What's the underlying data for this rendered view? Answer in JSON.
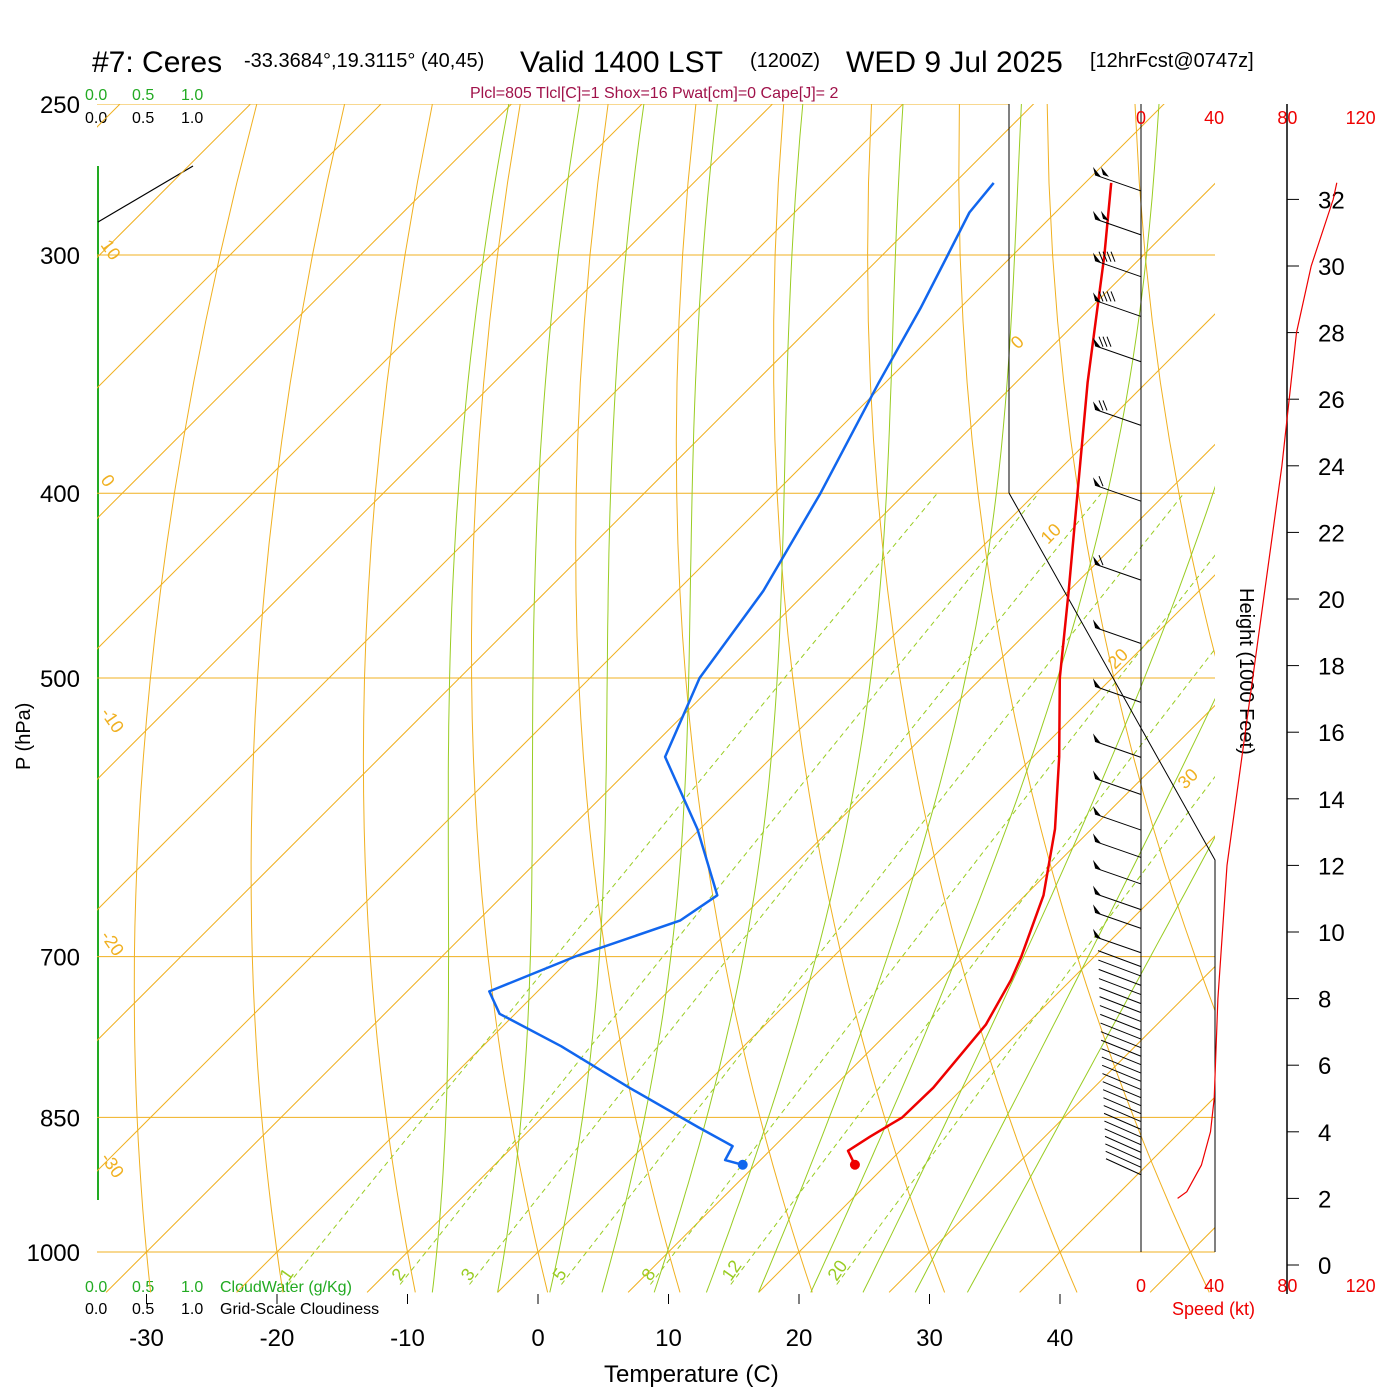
{
  "header": {
    "title": "#7: Ceres",
    "coords": "-33.3684°,19.3115° (40,45)",
    "valid": "Valid 1400 LST",
    "zulu": "(1200Z)",
    "date": "WED 9 Jul 2025",
    "forecast": "[12hrFcst@0747z]"
  },
  "indices": "Plcl=805 Tlcl[C]=1 Shox=16 Pwat[cm]=0 Cape[J]= 2",
  "scales": {
    "cloudwater_ticks": [
      "0.0",
      "0.5",
      "1.0"
    ],
    "cloudiness_ticks": [
      "0.0",
      "0.5",
      "1.0"
    ],
    "cloudwater_label": "CloudWater (g/Kg)",
    "cloudiness_label": "Grid-Scale Cloudiness"
  },
  "axes": {
    "xlabel": "Temperature (C)",
    "ylabel": "P (hPa)",
    "height_label": "Height (1000 Feet)",
    "speed_label": "Speed (kt)"
  },
  "colors": {
    "temperature": "#ee0000",
    "dewpoint": "#1166ee",
    "isotherm": "#f0b020",
    "dry_adiabat": "#f0b020",
    "moist_adiabat": "#99cc22",
    "mixing_ratio": "#99cc22",
    "cloud_scale": "#22aa22",
    "speed": "#ee0000"
  },
  "chart_data": {
    "type": "line",
    "subtype": "skew-t log-p sounding",
    "x_ticks": [
      -30,
      -20,
      -10,
      0,
      10,
      20,
      30,
      40
    ],
    "pressure_ticks": [
      250,
      300,
      400,
      500,
      700,
      850,
      1000
    ],
    "height_ticks": [
      0,
      2,
      4,
      6,
      8,
      10,
      12,
      14,
      16,
      18,
      20,
      22,
      24,
      26,
      28,
      30,
      32
    ],
    "speed_ticks": [
      0,
      40,
      80,
      120
    ],
    "isotherm_labels": [
      10,
      0,
      -10,
      -20,
      -30,
      0,
      10,
      20,
      30
    ],
    "mixing_ratio_labels": [
      1,
      2,
      3,
      5,
      8,
      12,
      20
    ],
    "series": [
      {
        "name": "temperature",
        "points": [
          {
            "p": 900,
            "t": 17.6
          },
          {
            "p": 885,
            "t": 16.0
          },
          {
            "p": 870,
            "t": 16.6
          },
          {
            "p": 850,
            "t": 17.6
          },
          {
            "p": 820,
            "t": 17.7
          },
          {
            "p": 760,
            "t": 16.9
          },
          {
            "p": 720,
            "t": 15.4
          },
          {
            "p": 700,
            "t": 14.4
          },
          {
            "p": 650,
            "t": 11.4
          },
          {
            "p": 600,
            "t": 7.2
          },
          {
            "p": 550,
            "t": 2.0
          },
          {
            "p": 500,
            "t": -4.0
          },
          {
            "p": 450,
            "t": -10.0
          },
          {
            "p": 400,
            "t": -16.8
          },
          {
            "p": 350,
            "t": -24.5
          },
          {
            "p": 300,
            "t": -33.0
          },
          {
            "p": 275,
            "t": -38.0
          }
        ]
      },
      {
        "name": "dewpoint",
        "points": [
          {
            "p": 900,
            "t": 9.0
          },
          {
            "p": 895,
            "t": 7.3
          },
          {
            "p": 880,
            "t": 6.8
          },
          {
            "p": 860,
            "t": 2.7
          },
          {
            "p": 820,
            "t": -5.6
          },
          {
            "p": 780,
            "t": -14.0
          },
          {
            "p": 750,
            "t": -21.2
          },
          {
            "p": 730,
            "t": -23.7
          },
          {
            "p": 700,
            "t": -19.8
          },
          {
            "p": 670,
            "t": -14.5
          },
          {
            "p": 650,
            "t": -13.6
          },
          {
            "p": 600,
            "t": -20.2
          },
          {
            "p": 550,
            "t": -28.2
          },
          {
            "p": 500,
            "t": -31.6
          },
          {
            "p": 450,
            "t": -33.4
          },
          {
            "p": 400,
            "t": -36.5
          },
          {
            "p": 350,
            "t": -40.5
          },
          {
            "p": 320,
            "t": -43.0
          },
          {
            "p": 300,
            "t": -45.0
          },
          {
            "p": 285,
            "t": -46.6
          },
          {
            "p": 275,
            "t": -47.0
          }
        ]
      },
      {
        "name": "speed",
        "points": [
          {
            "h": 2.0,
            "kt": 20
          },
          {
            "h": 2.2,
            "kt": 25
          },
          {
            "h": 3.0,
            "kt": 33
          },
          {
            "h": 4.0,
            "kt": 38
          },
          {
            "h": 5.0,
            "kt": 40
          },
          {
            "h": 8.0,
            "kt": 42
          },
          {
            "h": 12.0,
            "kt": 47
          },
          {
            "h": 16.0,
            "kt": 57
          },
          {
            "h": 20.0,
            "kt": 67
          },
          {
            "h": 24.0,
            "kt": 77
          },
          {
            "h": 28.0,
            "kt": 85
          },
          {
            "h": 30.0,
            "kt": 93
          },
          {
            "h": 32.0,
            "kt": 105
          },
          {
            "h": 32.5,
            "kt": 107
          }
        ]
      }
    ],
    "parcel_markers": [
      {
        "name": "surface temperature",
        "p": 900,
        "t": 17.6
      },
      {
        "name": "surface dewpoint",
        "p": 900,
        "t": 9.0
      }
    ],
    "wind_barbs": [
      {
        "p": 275,
        "kt": 100
      },
      {
        "p": 290,
        "kt": 100
      },
      {
        "p": 305,
        "kt": 90
      },
      {
        "p": 320,
        "kt": 90
      },
      {
        "p": 338,
        "kt": 80
      },
      {
        "p": 365,
        "kt": 75
      },
      {
        "p": 400,
        "kt": 65
      },
      {
        "p": 440,
        "kt": 60
      },
      {
        "p": 475,
        "kt": 55
      },
      {
        "p": 510,
        "kt": 50
      },
      {
        "p": 545,
        "kt": 50
      },
      {
        "p": 570,
        "kt": 50
      },
      {
        "p": 595,
        "kt": 50
      },
      {
        "p": 615,
        "kt": 50
      },
      {
        "p": 635,
        "kt": 50
      },
      {
        "p": 655,
        "kt": 50
      },
      {
        "p": 670,
        "kt": 50
      },
      {
        "p": 690,
        "kt": 50
      }
    ]
  }
}
